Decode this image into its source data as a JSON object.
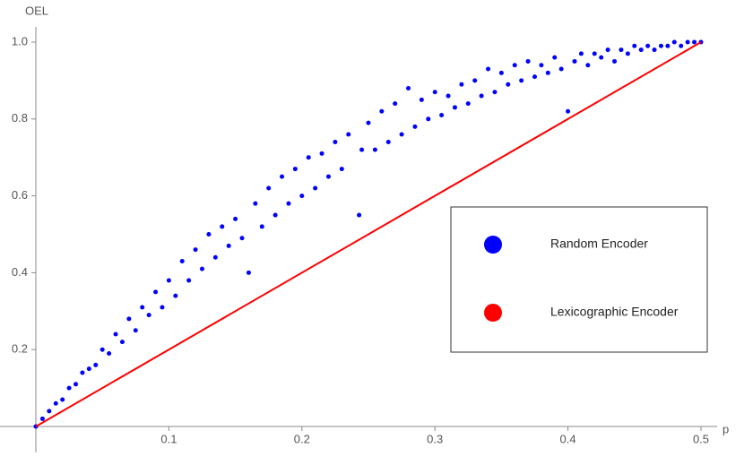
{
  "chart_data": {
    "type": "scatter",
    "x_label": "p",
    "y_label": "OEL",
    "xlim": [
      0,
      0.5
    ],
    "ylim": [
      0,
      1
    ],
    "xticks": [
      0.1,
      0.2,
      0.3,
      0.4,
      0.5
    ],
    "yticks": [
      0.2,
      0.4,
      0.6,
      0.8,
      {
        "value": 1,
        "label": "1.0"
      }
    ],
    "series": [
      {
        "name": "Random Encoder",
        "color": "#0000ff",
        "type": "scatter",
        "x": [
          0,
          0.005,
          0.01,
          0.015,
          0.02,
          0.025,
          0.03,
          0.035,
          0.04,
          0.045,
          0.05,
          0.055,
          0.06,
          0.065,
          0.07,
          0.075,
          0.08,
          0.085,
          0.09,
          0.095,
          0.1,
          0.105,
          0.11,
          0.115,
          0.12,
          0.125,
          0.13,
          0.135,
          0.14,
          0.145,
          0.15,
          0.155,
          0.16,
          0.165,
          0.17,
          0.175,
          0.18,
          0.185,
          0.19,
          0.195,
          0.2,
          0.205,
          0.21,
          0.215,
          0.22,
          0.225,
          0.23,
          0.235,
          0.243,
          0.245,
          0.25,
          0.255,
          0.26,
          0.265,
          0.27,
          0.275,
          0.28,
          0.285,
          0.29,
          0.295,
          0.3,
          0.305,
          0.31,
          0.315,
          0.32,
          0.325,
          0.33,
          0.335,
          0.34,
          0.345,
          0.35,
          0.355,
          0.36,
          0.365,
          0.37,
          0.375,
          0.38,
          0.385,
          0.39,
          0.395,
          0.4,
          0.405,
          0.41,
          0.415,
          0.42,
          0.425,
          0.43,
          0.435,
          0.44,
          0.445,
          0.45,
          0.455,
          0.46,
          0.465,
          0.47,
          0.475,
          0.48,
          0.485,
          0.49,
          0.495,
          0.5
        ],
        "values": [
          0,
          0.02,
          0.04,
          0.06,
          0.07,
          0.1,
          0.11,
          0.14,
          0.15,
          0.16,
          0.2,
          0.19,
          0.24,
          0.22,
          0.28,
          0.25,
          0.31,
          0.29,
          0.35,
          0.31,
          0.38,
          0.34,
          0.43,
          0.38,
          0.46,
          0.41,
          0.5,
          0.44,
          0.52,
          0.47,
          0.54,
          0.49,
          0.4,
          0.58,
          0.52,
          0.62,
          0.55,
          0.65,
          0.58,
          0.67,
          0.6,
          0.7,
          0.62,
          0.71,
          0.65,
          0.74,
          0.67,
          0.76,
          0.55,
          0.72,
          0.79,
          0.72,
          0.82,
          0.74,
          0.84,
          0.76,
          0.88,
          0.78,
          0.85,
          0.8,
          0.87,
          0.81,
          0.86,
          0.83,
          0.89,
          0.84,
          0.9,
          0.86,
          0.93,
          0.87,
          0.92,
          0.89,
          0.94,
          0.9,
          0.95,
          0.91,
          0.94,
          0.92,
          0.96,
          0.93,
          0.82,
          0.95,
          0.97,
          0.94,
          0.97,
          0.96,
          0.98,
          0.95,
          0.98,
          0.97,
          0.99,
          0.98,
          0.99,
          0.98,
          0.99,
          0.99,
          1,
          0.99,
          1,
          1,
          1
        ]
      },
      {
        "name": "Lexicographic Encoder",
        "color": "#ff0000",
        "type": "line",
        "x": [
          0,
          0.5
        ],
        "values": [
          0,
          1
        ]
      }
    ]
  }
}
